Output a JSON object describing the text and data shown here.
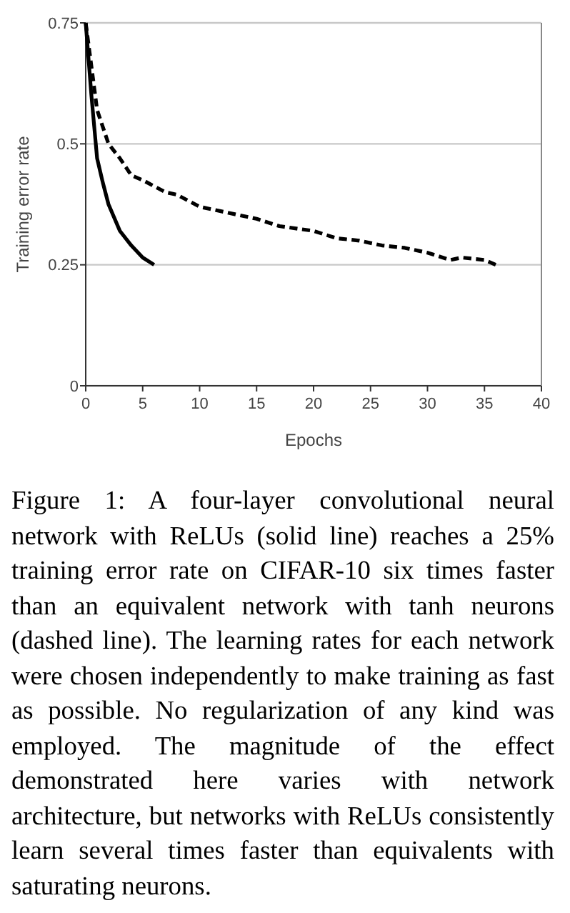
{
  "chart_data": {
    "type": "line",
    "xlabel": "Epochs",
    "ylabel": "Training error rate",
    "xlim": [
      0,
      40
    ],
    "xticks": [
      0,
      5,
      10,
      15,
      20,
      25,
      30,
      35,
      40
    ],
    "ylim": [
      0,
      0.75
    ],
    "yticks": [
      0,
      0.25,
      0.5,
      0.75
    ],
    "grid": "y",
    "marker": "none",
    "series": [
      {
        "color": "#000000",
        "line_style": "solid",
        "x": [
          0,
          0.5,
          1,
          1.5,
          2,
          3,
          4,
          5,
          6
        ],
        "values": [
          0.75,
          0.6,
          0.47,
          0.42,
          0.375,
          0.32,
          0.29,
          0.265,
          0.25
        ]
      },
      {
        "color": "#000000",
        "line_style": "dashed",
        "x": [
          0,
          1,
          2,
          3,
          4,
          5,
          7,
          8,
          10,
          12,
          15,
          17,
          20,
          22,
          24,
          26,
          28,
          30,
          32,
          33,
          35,
          36
        ],
        "values": [
          0.75,
          0.57,
          0.5,
          0.47,
          0.435,
          0.425,
          0.4,
          0.395,
          0.37,
          0.36,
          0.345,
          0.33,
          0.32,
          0.305,
          0.3,
          0.29,
          0.285,
          0.275,
          0.26,
          0.265,
          0.26,
          0.25
        ]
      }
    ],
    "annotations": [
      "Figure 1: A four-layer convolutional neural network with ReLUs (solid line) reaches a 25% training error rate on CIFAR-10 six times faster than an equivalent network with tanh neurons (dashed line). The learning rates for each network were chosen independently to make training as fast as possible. No regularization of any kind was employed. The magnitude of the effect demonstrated here varies with network architecture, but networks with ReLUs consistently learn several times faster than equivalents with saturating neurons."
    ]
  }
}
